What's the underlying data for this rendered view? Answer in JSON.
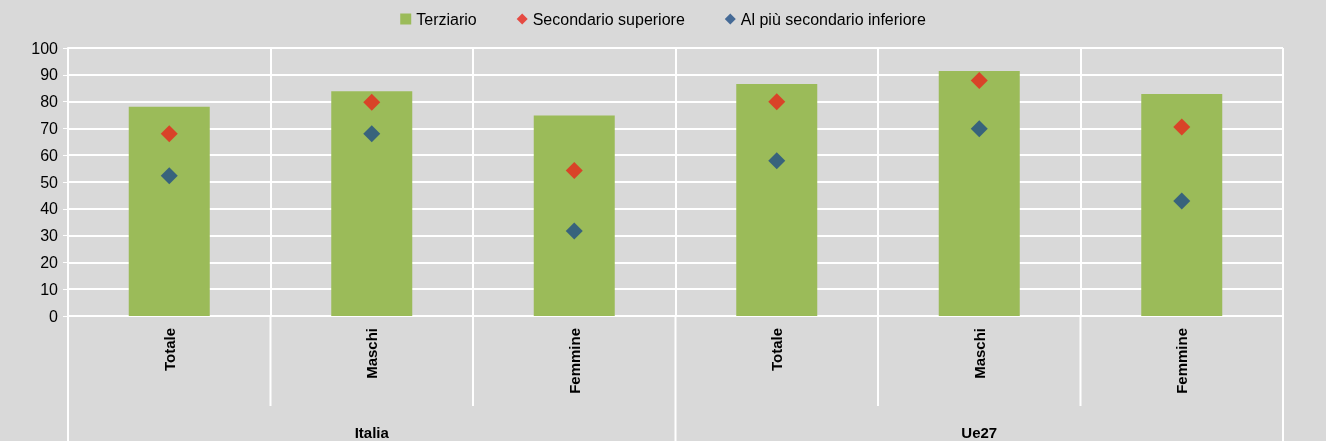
{
  "chart_data": {
    "type": "bar",
    "categories": [
      "Totale",
      "Maschi",
      "Femmine",
      "Totale",
      "Maschi",
      "Femmine"
    ],
    "series": [
      {
        "name": "Terziario",
        "color": "#9bbb59",
        "values": [
          78.1,
          83.9,
          74.8,
          86.6,
          91.4,
          82.8
        ]
      },
      {
        "name": "Secondario superiore",
        "type": "scatter",
        "color": "#e8251c",
        "values": [
          68.0,
          79.8,
          54.3,
          79.9,
          87.9,
          70.5
        ]
      },
      {
        "name": "Al più secondario inferiore",
        "type": "scatter",
        "color": "#1f4e85",
        "values": [
          52.3,
          68.0,
          31.7,
          57.9,
          69.9,
          42.9
        ]
      }
    ],
    "annotations": [
      "Italia",
      "Ue27"
    ],
    "ylim": [
      0,
      100
    ],
    "yticks": [
      0,
      10,
      20,
      30,
      40,
      50,
      60,
      70,
      80,
      90,
      100
    ],
    "grid": true,
    "legend": "top",
    "marker": "diamond"
  }
}
